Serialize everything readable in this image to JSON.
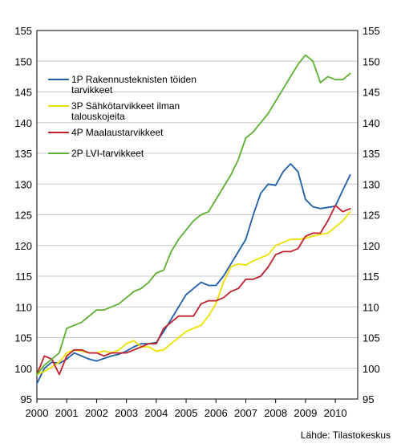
{
  "chart_data": {
    "type": "line",
    "title": "",
    "xlabel": "",
    "ylabel": "",
    "xlim": [
      2000,
      2010.75
    ],
    "ylim": [
      95,
      155
    ],
    "y_ticks": [
      95,
      100,
      105,
      110,
      115,
      120,
      125,
      130,
      135,
      140,
      145,
      150,
      155
    ],
    "x_ticks": [
      2000,
      2001,
      2002,
      2003,
      2004,
      2005,
      2006,
      2007,
      2008,
      2009,
      2010
    ],
    "x_tick_labels": [
      "2000",
      "2001",
      "2002",
      "2003",
      "2004",
      "2005",
      "2006",
      "2007",
      "2008",
      "2009",
      "2010"
    ],
    "grid": "horizontal",
    "legend_position": "upper-left",
    "source_note": "Lähde: Tilastokeskus",
    "series": [
      {
        "name": "1P Rakennusteknisten töiden tarvikkeet",
        "legend_lines": [
          "1P Rakennusteknisten töiden",
          "tarvikkeet"
        ],
        "color": "#1f5fa8",
        "x": [
          2000.0,
          2000.25,
          2000.5,
          2000.75,
          2001.0,
          2001.25,
          2001.5,
          2001.75,
          2002.0,
          2002.25,
          2002.5,
          2002.75,
          2003.0,
          2003.25,
          2003.5,
          2003.75,
          2004.0,
          2004.25,
          2004.5,
          2004.75,
          2005.0,
          2005.25,
          2005.5,
          2005.75,
          2006.0,
          2006.25,
          2006.5,
          2006.75,
          2007.0,
          2007.25,
          2007.5,
          2007.75,
          2008.0,
          2008.25,
          2008.5,
          2008.75,
          2009.0,
          2009.25,
          2009.5,
          2009.75,
          2010.0,
          2010.25,
          2010.5
        ],
        "y": [
          97.5,
          100.0,
          101.0,
          100.8,
          101.5,
          102.5,
          102.0,
          101.5,
          101.2,
          101.6,
          102.0,
          102.3,
          102.8,
          103.5,
          104.0,
          104.0,
          104.2,
          106.0,
          108.0,
          110.0,
          112.0,
          113.0,
          114.0,
          113.5,
          113.5,
          115.0,
          117.0,
          119.0,
          121.0,
          125.0,
          128.5,
          130.0,
          129.8,
          132.0,
          133.3,
          132.0,
          127.5,
          126.3,
          126.0,
          126.2,
          126.4,
          129.0,
          131.5
        ]
      },
      {
        "name": "3P Sähkötarvikkeet ilman talouskojeita",
        "legend_lines": [
          "3P Sähkötarvikkeet ilman",
          "talouskojeita"
        ],
        "color": "#f0e000",
        "x": [
          2000.0,
          2000.25,
          2000.5,
          2000.75,
          2001.0,
          2001.25,
          2001.5,
          2001.75,
          2002.0,
          2002.25,
          2002.5,
          2002.75,
          2003.0,
          2003.25,
          2003.5,
          2003.75,
          2004.0,
          2004.25,
          2004.5,
          2004.75,
          2005.0,
          2005.25,
          2005.5,
          2005.75,
          2006.0,
          2006.25,
          2006.5,
          2006.75,
          2007.0,
          2007.25,
          2007.5,
          2007.75,
          2008.0,
          2008.25,
          2008.5,
          2008.75,
          2009.0,
          2009.25,
          2009.5,
          2009.75,
          2010.0,
          2010.25,
          2010.5
        ],
        "y": [
          99.0,
          99.5,
          100.2,
          101.0,
          102.5,
          103.0,
          102.8,
          102.5,
          102.5,
          102.8,
          102.5,
          103.0,
          104.0,
          104.5,
          103.5,
          103.5,
          102.8,
          103.0,
          104.0,
          105.0,
          106.0,
          106.5,
          107.0,
          108.5,
          110.5,
          114.0,
          116.5,
          117.0,
          116.8,
          117.5,
          118.0,
          118.5,
          120.0,
          120.5,
          121.0,
          121.0,
          121.2,
          121.5,
          121.8,
          122.0,
          123.0,
          124.0,
          125.5
        ]
      },
      {
        "name": "4P Maalaustarvikkeet",
        "legend_lines": [
          "4P Maalaustarvikkeet"
        ],
        "color": "#c0202a",
        "x": [
          2000.0,
          2000.25,
          2000.5,
          2000.75,
          2001.0,
          2001.25,
          2001.5,
          2001.75,
          2002.0,
          2002.25,
          2002.5,
          2002.75,
          2003.0,
          2003.25,
          2003.5,
          2003.75,
          2004.0,
          2004.25,
          2004.5,
          2004.75,
          2005.0,
          2005.25,
          2005.5,
          2005.75,
          2006.0,
          2006.25,
          2006.5,
          2006.75,
          2007.0,
          2007.25,
          2007.5,
          2007.75,
          2008.0,
          2008.25,
          2008.5,
          2008.75,
          2009.0,
          2009.25,
          2009.5,
          2009.75,
          2010.0,
          2010.25,
          2010.5
        ],
        "y": [
          99.0,
          102.0,
          101.5,
          99.0,
          102.0,
          103.0,
          103.0,
          102.5,
          102.5,
          102.0,
          102.5,
          102.5,
          102.5,
          103.0,
          103.5,
          104.0,
          104.0,
          106.5,
          107.5,
          108.5,
          108.5,
          108.5,
          110.5,
          111.0,
          111.0,
          111.5,
          112.5,
          113.0,
          114.5,
          114.5,
          115.0,
          116.5,
          118.5,
          119.0,
          119.0,
          119.5,
          121.5,
          122.0,
          122.0,
          124.0,
          126.5,
          125.5,
          126.0
        ]
      },
      {
        "name": "2P LVI-tarvikkeet",
        "legend_lines": [
          "2P LVI-tarvikkeet"
        ],
        "color": "#5cb030",
        "x": [
          2000.0,
          2000.25,
          2000.5,
          2000.75,
          2001.0,
          2001.25,
          2001.5,
          2001.75,
          2002.0,
          2002.25,
          2002.5,
          2002.75,
          2003.0,
          2003.25,
          2003.5,
          2003.75,
          2004.0,
          2004.25,
          2004.5,
          2004.75,
          2005.0,
          2005.25,
          2005.5,
          2005.75,
          2006.0,
          2006.25,
          2006.5,
          2006.75,
          2007.0,
          2007.25,
          2007.5,
          2007.75,
          2008.0,
          2008.25,
          2008.5,
          2008.75,
          2009.0,
          2009.25,
          2009.5,
          2009.75,
          2010.0,
          2010.25,
          2010.5
        ],
        "y": [
          99.0,
          100.5,
          101.5,
          102.5,
          106.5,
          107.0,
          107.5,
          108.5,
          109.5,
          109.5,
          110.0,
          110.5,
          111.5,
          112.5,
          113.0,
          114.0,
          115.5,
          116.0,
          119.0,
          121.0,
          122.5,
          124.0,
          125.0,
          125.5,
          127.5,
          129.5,
          131.5,
          134.0,
          137.5,
          138.5,
          140.0,
          141.5,
          143.5,
          145.5,
          147.5,
          149.5,
          151.0,
          150.0,
          146.5,
          147.5,
          147.0,
          147.0,
          148.0
        ]
      }
    ]
  }
}
